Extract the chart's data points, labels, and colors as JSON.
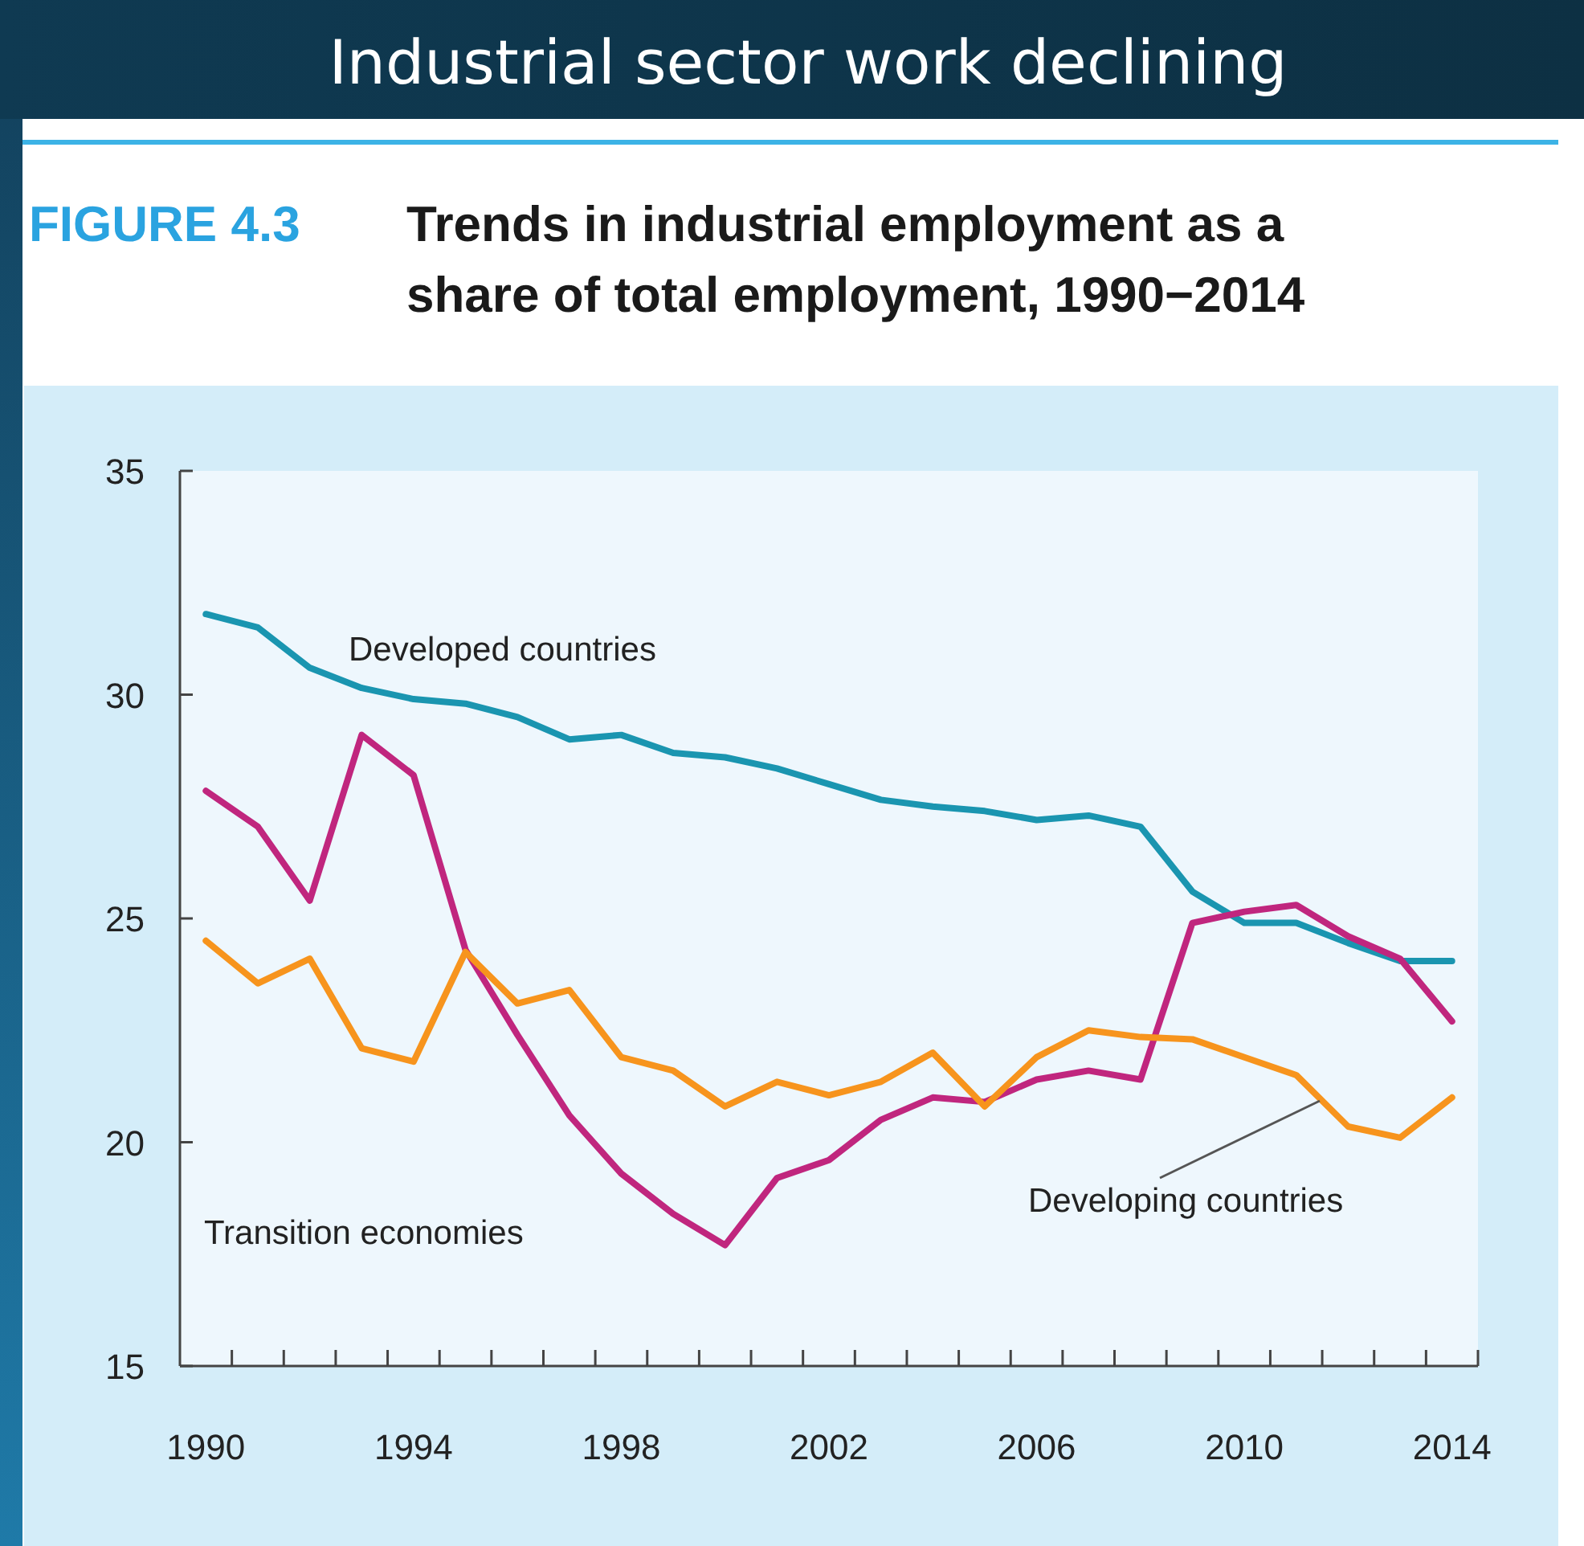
{
  "chart_data": {
    "type": "line",
    "title": "Industrial sector work declining",
    "subtitle": "FIGURE 4.3 Trends in industrial employment as a share of total employment, 1990−2014",
    "categories": [
      "1990",
      null,
      null,
      null,
      "1994",
      null,
      null,
      null,
      "1998",
      null,
      null,
      null,
      "2002",
      null,
      null,
      null,
      "2006",
      null,
      null,
      null,
      "2010",
      null,
      null,
      null,
      "2014"
    ],
    "series": [
      {
        "name": "Developed countries",
        "color": "#1a95b0",
        "values": [
          31.8,
          31.5,
          30.6,
          30.15,
          29.9,
          29.8,
          29.5,
          29.0,
          29.1,
          28.7,
          28.6,
          28.35,
          28.0,
          27.65,
          27.5,
          27.4,
          27.2,
          27.3,
          27.05,
          25.6,
          24.9,
          24.9,
          24.45,
          24.05,
          24.05
        ]
      },
      {
        "name": "Transition economies",
        "color": "#c0267e",
        "values": [
          27.85,
          27.05,
          25.4,
          29.1,
          28.2,
          24.3,
          22.4,
          20.6,
          19.3,
          18.4,
          17.7,
          19.2,
          19.6,
          20.5,
          21.0,
          20.9,
          21.4,
          21.6,
          21.4,
          24.9,
          25.15,
          25.3,
          24.6,
          24.1,
          22.7
        ]
      },
      {
        "name": "Developing countries",
        "color": "#f7941d",
        "values": [
          24.5,
          23.55,
          24.1,
          22.1,
          21.8,
          24.25,
          23.1,
          23.4,
          21.9,
          21.6,
          20.8,
          21.35,
          21.05,
          21.35,
          22.0,
          20.8,
          21.9,
          22.5,
          22.35,
          22.3,
          21.9,
          21.5,
          20.35,
          20.1,
          21.0
        ]
      }
    ],
    "ylim": [
      15,
      35
    ],
    "yticks": [
      15,
      20,
      25,
      30,
      35
    ],
    "grid": false,
    "marker": "none",
    "line_style": "solid"
  }
}
